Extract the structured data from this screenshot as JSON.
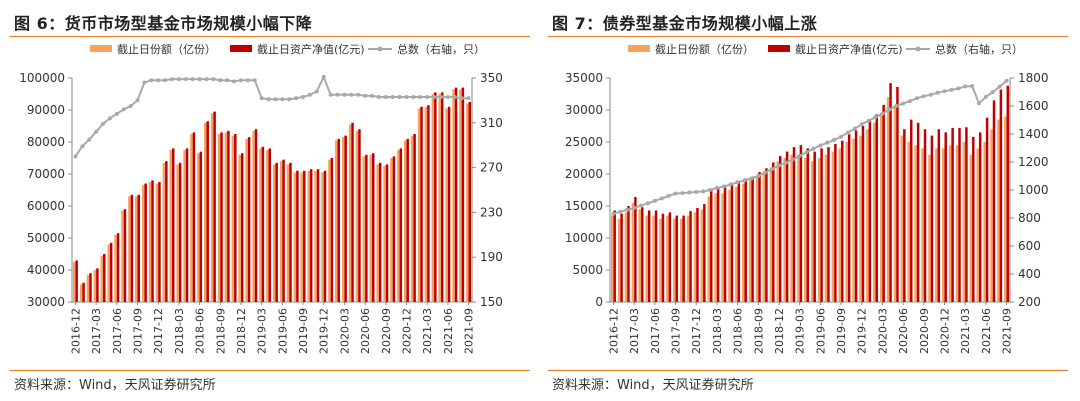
{
  "colors": {
    "accent": "#e87722",
    "bar_a": "#f4a460",
    "bar_b": "#c00000",
    "line": "#a9a9a9"
  },
  "charts": [
    {
      "title": "图 6：货币市场型基金市场规模小幅下降",
      "source": "资料来源：Wind，天风证券研究所",
      "chart_data": {
        "type": "bar",
        "combo": "bar+line (line on right axis)",
        "categories": [
          "2016-12",
          "2017-01",
          "2017-02",
          "2017-03",
          "2017-04",
          "2017-05",
          "2017-06",
          "2017-07",
          "2017-08",
          "2017-09",
          "2017-10",
          "2017-11",
          "2017-12",
          "2018-01",
          "2018-02",
          "2018-03",
          "2018-04",
          "2018-05",
          "2018-06",
          "2018-07",
          "2018-08",
          "2018-09",
          "2018-10",
          "2018-11",
          "2018-12",
          "2019-01",
          "2019-02",
          "2019-03",
          "2019-04",
          "2019-05",
          "2019-06",
          "2019-07",
          "2019-08",
          "2019-09",
          "2019-10",
          "2019-11",
          "2019-12",
          "2020-01",
          "2020-02",
          "2020-03",
          "2020-04",
          "2020-05",
          "2020-06",
          "2020-07",
          "2020-08",
          "2020-09",
          "2020-10",
          "2020-11",
          "2020-12",
          "2021-01",
          "2021-02",
          "2021-03",
          "2021-04",
          "2021-05",
          "2021-06",
          "2021-07",
          "2021-08",
          "2021-09"
        ],
        "x_tick_labels": [
          "2016-12",
          "2017-03",
          "2017-06",
          "2017-09",
          "2017-12",
          "2018-03",
          "2018-06",
          "2018-09",
          "2018-12",
          "2019-03",
          "2019-06",
          "2019-09",
          "2019-12",
          "2020-03",
          "2020-06",
          "2020-09",
          "2020-12",
          "2021-03",
          "2021-06",
          "2021-09"
        ],
        "series": [
          {
            "name": "截止日份额（亿份）",
            "axis": "left",
            "kind": "bar",
            "values": [
              42500,
              35500,
              38500,
              40000,
              44500,
              48000,
              51000,
              58500,
              63000,
              63000,
              66500,
              67500,
              67000,
              73500,
              77500,
              73000,
              77500,
              82500,
              76500,
              86000,
              89000,
              82500,
              83000,
              82000,
              76000,
              81000,
              83500,
              78000,
              77500,
              73000,
              74000,
              73000,
              70500,
              70500,
              71000,
              71000,
              70500,
              74500,
              80500,
              81500,
              85500,
              83500,
              75500,
              76000,
              73000,
              72500,
              75000,
              77500,
              80500,
              82000,
              90500,
              91000,
              95000,
              95000,
              90500,
              96500,
              96500,
              92000
            ]
          },
          {
            "name": "截止日资产净值(亿元)",
            "axis": "left",
            "kind": "bar",
            "values": [
              43000,
              36000,
              39000,
              40500,
              45000,
              48500,
              51500,
              59000,
              63500,
              63500,
              67000,
              68000,
              67500,
              74000,
              78000,
              73500,
              78000,
              83000,
              77000,
              86500,
              89500,
              83000,
              83500,
              82500,
              76500,
              81500,
              84000,
              78500,
              78000,
              73500,
              74500,
              73500,
              71000,
              71000,
              71500,
              71500,
              71000,
              75000,
              81000,
              82000,
              86000,
              84000,
              76000,
              76500,
              73500,
              73000,
              75500,
              78000,
              81000,
              82500,
              91000,
              91500,
              95500,
              95500,
              91000,
              97000,
              97000,
              92500
            ]
          },
          {
            "name": "总数（右轴，只）",
            "axis": "right",
            "kind": "line",
            "values": [
              280,
              289,
              295,
              302,
              309,
              314,
              318,
              322,
              325,
              330,
              346,
              348,
              348,
              348,
              349,
              349,
              349,
              349,
              349,
              349,
              349,
              348,
              348,
              347,
              348,
              348,
              348,
              332,
              331,
              331,
              331,
              331,
              332,
              333,
              335,
              338,
              351,
              335,
              335,
              335,
              335,
              335,
              334,
              334,
              333,
              333,
              333,
              333,
              333,
              333,
              333,
              333,
              333,
              333,
              333,
              333,
              332,
              332
            ]
          }
        ],
        "ylim_left": [
          30000,
          100000
        ],
        "yticks_left": [
          30000,
          40000,
          50000,
          60000,
          70000,
          80000,
          90000,
          100000
        ],
        "ylim_right": [
          150,
          350
        ],
        "yticks_right": [
          150,
          190,
          230,
          270,
          310,
          350
        ],
        "legend": "top",
        "grid": false
      }
    },
    {
      "title": "图 7：债券型基金市场规模小幅上涨",
      "source": "资料来源：Wind，天风证券研究所",
      "chart_data": {
        "type": "bar",
        "combo": "bar+line (line on right axis)",
        "categories": [
          "2016-12",
          "2017-01",
          "2017-02",
          "2017-03",
          "2017-04",
          "2017-05",
          "2017-06",
          "2017-07",
          "2017-08",
          "2017-09",
          "2017-10",
          "2017-11",
          "2017-12",
          "2018-01",
          "2018-02",
          "2018-03",
          "2018-04",
          "2018-05",
          "2018-06",
          "2018-07",
          "2018-08",
          "2018-09",
          "2018-10",
          "2018-11",
          "2018-12",
          "2019-01",
          "2019-02",
          "2019-03",
          "2019-04",
          "2019-05",
          "2019-06",
          "2019-07",
          "2019-08",
          "2019-09",
          "2019-10",
          "2019-11",
          "2019-12",
          "2020-01",
          "2020-02",
          "2020-03",
          "2020-04",
          "2020-05",
          "2020-06",
          "2020-07",
          "2020-08",
          "2020-09",
          "2020-10",
          "2020-11",
          "2020-12",
          "2021-01",
          "2021-02",
          "2021-03",
          "2021-04",
          "2021-05",
          "2021-06",
          "2021-07",
          "2021-08",
          "2021-09"
        ],
        "x_tick_labels": [
          "2016-12",
          "2017-03",
          "2017-06",
          "2017-09",
          "2017-12",
          "2018-03",
          "2018-06",
          "2018-09",
          "2018-12",
          "2019-03",
          "2019-06",
          "2019-09",
          "2019-12",
          "2020-03",
          "2020-06",
          "2020-09",
          "2020-12",
          "2021-03",
          "2021-06",
          "2021-09"
        ],
        "series": [
          {
            "name": "截止日份额（亿份）",
            "axis": "left",
            "kind": "bar",
            "values": [
              13500,
              13000,
              14000,
              15500,
              14500,
              13500,
              13500,
              13000,
              13500,
              13000,
              13000,
              13500,
              14000,
              14500,
              16500,
              17000,
              17000,
              17500,
              18000,
              18500,
              19000,
              19500,
              20000,
              21000,
              22000,
              22500,
              23000,
              23000,
              22500,
              22000,
              22500,
              23000,
              23500,
              24000,
              25000,
              25500,
              26000,
              27000,
              28000,
              29500,
              32000,
              30500,
              26000,
              25000,
              24500,
              24000,
              23000,
              24000,
              24000,
              24500,
              24500,
              25000,
              23000,
              24000,
              25000,
              27000,
              28500,
              29000
            ]
          },
          {
            "name": "截止日资产净值(亿元)",
            "axis": "left",
            "kind": "bar",
            "values": [
              14300,
              13800,
              15000,
              16400,
              14800,
              14300,
              14300,
              13800,
              14000,
              13500,
              13500,
              14200,
              14700,
              15300,
              17500,
              18000,
              18000,
              18400,
              18800,
              19300,
              19600,
              20300,
              20900,
              21800,
              22800,
              23500,
              24200,
              24500,
              24000,
              23500,
              24000,
              24200,
              24700,
              25200,
              26200,
              26800,
              27500,
              28400,
              29300,
              30800,
              34200,
              33600,
              27000,
              28500,
              28000,
              27000,
              26000,
              27000,
              26500,
              27200,
              27200,
              27300,
              25800,
              26500,
              28800,
              31500,
              33200,
              33800
            ]
          },
          {
            "name": "总数（右轴，只）",
            "axis": "right",
            "kind": "line",
            "values": [
              830,
              845,
              858,
              872,
              888,
              905,
              922,
              940,
              958,
              975,
              978,
              982,
              986,
              990,
              1000,
              1015,
              1025,
              1040,
              1055,
              1068,
              1082,
              1100,
              1125,
              1150,
              1175,
              1195,
              1218,
              1245,
              1270,
              1295,
              1318,
              1338,
              1358,
              1380,
              1410,
              1438,
              1470,
              1495,
              1520,
              1545,
              1575,
              1600,
              1618,
              1635,
              1655,
              1670,
              1680,
              1695,
              1705,
              1715,
              1725,
              1740,
              1742,
              1620,
              1665,
              1700,
              1738,
              1780
            ]
          }
        ],
        "ylim_left": [
          0,
          35000
        ],
        "yticks_left": [
          0,
          5000,
          10000,
          15000,
          20000,
          25000,
          30000,
          35000
        ],
        "ylim_right": [
          200,
          1800
        ],
        "yticks_right": [
          200,
          400,
          600,
          800,
          1000,
          1200,
          1400,
          1600,
          1800
        ],
        "legend": "top",
        "grid": false
      }
    }
  ]
}
